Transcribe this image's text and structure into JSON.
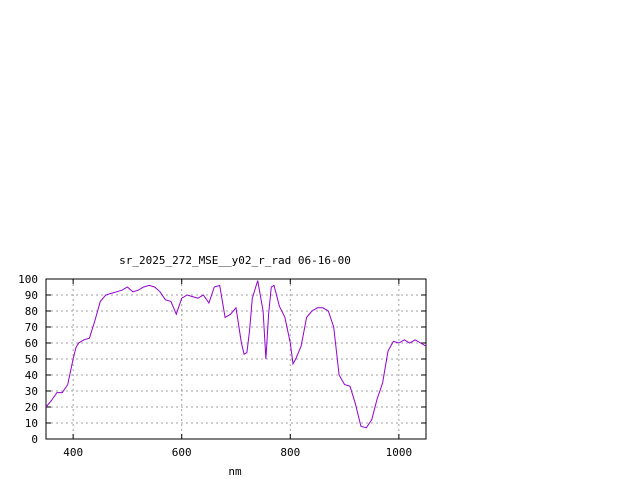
{
  "chart_data": {
    "type": "line",
    "title": "sr_2025_272_MSE__y02_r_rad 06-16-00",
    "xlabel": "nm",
    "ylabel": "",
    "xlim": [
      350,
      1050
    ],
    "ylim": [
      0,
      100
    ],
    "x_ticks": [
      400,
      600,
      800,
      1000
    ],
    "y_ticks": [
      0,
      10,
      20,
      30,
      40,
      50,
      60,
      70,
      80,
      90,
      100
    ],
    "grid": true,
    "legend": "none",
    "line_color": "#9400d3",
    "series": [
      {
        "x": [
          350,
          360,
          370,
          380,
          390,
          400,
          405,
          410,
          420,
          430,
          440,
          450,
          460,
          470,
          480,
          490,
          500,
          510,
          520,
          530,
          540,
          550,
          560,
          570,
          580,
          590,
          600,
          610,
          620,
          630,
          640,
          650,
          660,
          670,
          680,
          690,
          700,
          710,
          715,
          720,
          725,
          730,
          740,
          750,
          755,
          760,
          765,
          770,
          780,
          790,
          800,
          805,
          810,
          820,
          830,
          840,
          850,
          860,
          870,
          880,
          890,
          900,
          910,
          920,
          930,
          940,
          950,
          960,
          970,
          980,
          990,
          1000,
          1010,
          1020,
          1030,
          1040,
          1050
        ],
        "y": [
          20,
          24,
          29,
          29,
          34,
          50,
          57,
          60,
          62,
          63,
          74,
          86,
          90,
          91,
          92,
          93,
          95,
          92,
          93,
          95,
          96,
          95,
          92,
          87,
          86,
          78,
          88,
          90,
          89,
          88,
          90,
          85,
          95,
          96,
          76,
          78,
          82,
          60,
          53,
          54,
          68,
          88,
          99,
          80,
          50,
          78,
          95,
          96,
          83,
          76,
          60,
          47,
          50,
          58,
          76,
          80,
          82,
          82,
          80,
          70,
          40,
          34,
          33,
          22,
          8,
          7,
          12,
          25,
          35,
          55,
          61,
          60,
          62,
          60,
          62,
          60,
          58
        ]
      }
    ]
  }
}
